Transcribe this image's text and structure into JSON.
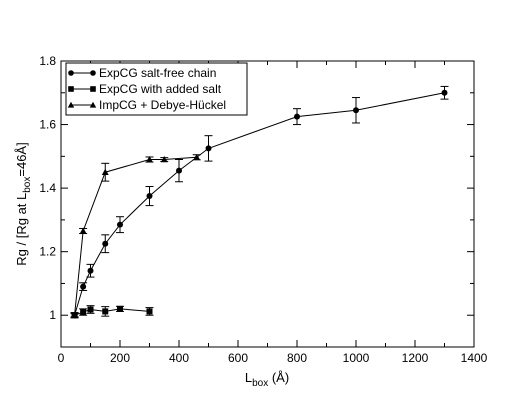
{
  "chart_data": {
    "type": "line",
    "xlabel": {
      "main": "L",
      "sub": "box",
      "suffix": " (Å)"
    },
    "ylabel": {
      "pre": "Rg / [Rg at L",
      "sub": "box",
      "post": "=46Å]"
    },
    "xlim": [
      0,
      1400
    ],
    "ylim": [
      0.9,
      1.8
    ],
    "xticks": [
      0,
      200,
      400,
      600,
      800,
      1000,
      1200,
      1400
    ],
    "yticks": [
      1,
      1.2,
      1.4,
      1.6,
      1.8
    ],
    "xtick_labels": [
      "0",
      "200",
      "400",
      "600",
      "800",
      "1000",
      "1200",
      "1400"
    ],
    "ytick_labels": [
      "1",
      "1.2",
      "1.4",
      "1.6",
      "1.8"
    ],
    "grid": false,
    "legend_position": "top-left",
    "series": [
      {
        "name": "ExpCG salt-free chain",
        "marker": "circle",
        "x": [
          46,
          75,
          100,
          150,
          200,
          300,
          400,
          500,
          800,
          1000,
          1300
        ],
        "y": [
          1.0,
          1.09,
          1.14,
          1.225,
          1.285,
          1.375,
          1.455,
          1.525,
          1.625,
          1.645,
          1.7
        ],
        "err": [
          0.008,
          0.012,
          0.02,
          0.028,
          0.025,
          0.03,
          0.035,
          0.04,
          0.025,
          0.04,
          0.02
        ]
      },
      {
        "name": "ExpCG with added salt",
        "marker": "square",
        "x": [
          46,
          75,
          100,
          150,
          200,
          300
        ],
        "y": [
          1.0,
          1.01,
          1.018,
          1.012,
          1.02,
          1.012
        ],
        "err": [
          0.008,
          0.01,
          0.012,
          0.015,
          0.008,
          0.012
        ]
      },
      {
        "name": "ImpCG + Debye-Hückel",
        "marker": "triangle",
        "x": [
          46,
          75,
          150,
          300,
          350,
          460
        ],
        "y": [
          1.0,
          1.265,
          1.45,
          1.49,
          1.49,
          1.497
        ],
        "err": [
          0.005,
          0.008,
          0.028,
          0.008,
          0.006,
          0.008
        ]
      }
    ]
  }
}
